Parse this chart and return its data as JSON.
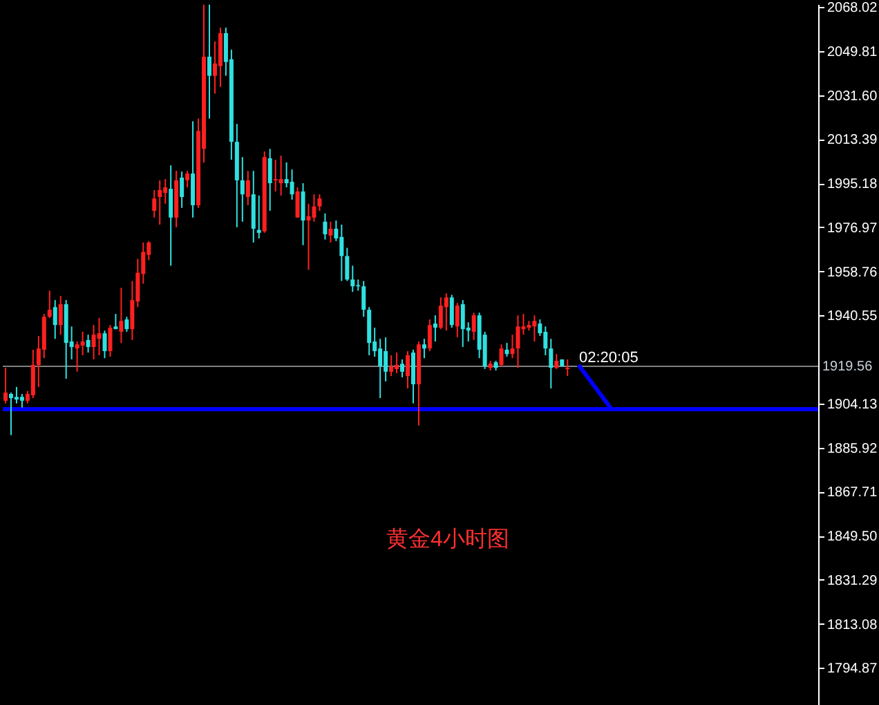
{
  "chart_data": {
    "type": "candlestick",
    "categories": [
      null,
      null,
      null,
      null,
      null,
      null,
      null,
      null,
      null,
      null,
      null,
      null,
      null,
      null,
      null,
      null,
      null,
      null,
      null,
      null,
      null,
      null,
      null,
      null,
      null,
      null,
      null,
      null,
      null,
      null,
      null,
      null,
      null,
      null,
      null,
      null,
      null,
      null,
      null,
      null,
      null,
      null,
      null,
      null,
      null,
      null,
      null,
      null,
      null,
      null,
      null,
      null,
      null,
      null,
      null,
      null,
      null,
      null,
      null,
      null,
      null,
      null,
      null,
      null,
      null,
      null,
      null,
      null,
      null,
      null,
      null,
      null,
      null,
      null,
      null,
      null,
      null,
      null,
      null,
      null,
      null,
      null,
      null,
      null,
      null,
      null,
      null,
      null,
      null,
      null,
      null,
      null,
      null,
      null,
      null,
      null,
      null,
      null,
      null,
      null,
      null,
      null,
      null,
      null,
      null,
      null,
      null,
      null,
      null,
      null,
      null,
      null,
      null,
      null,
      null,
      null,
      null,
      null,
      null,
      null,
      null,
      null,
      null,
      null,
      null,
      null,
      null,
      null,
      null,
      null,
      null,
      null,
      null,
      null,
      null,
      null,
      null,
      null,
      null,
      null,
      null,
      null,
      null,
      null,
      null,
      null,
      null,
      null
    ],
    "ohlc": [
      [
        1905.3,
        1918.9,
        1904.2,
        1908.7
      ],
      [
        1908.1,
        1908.7,
        1891.1,
        1906.4
      ],
      [
        1906.9,
        1911.0,
        1904.2,
        1905.8
      ],
      [
        1906.9,
        1908.1,
        1902.5,
        1905.3
      ],
      [
        1905.3,
        1909.3,
        1904.2,
        1908.1
      ],
      [
        1907.6,
        1926.4,
        1906.4,
        1920.1
      ],
      [
        1920.1,
        1932.1,
        1911.0,
        1926.9
      ],
      [
        1926.4,
        1941.2,
        1922.9,
        1940.0
      ],
      [
        1940.0,
        1950.8,
        1939.5,
        1942.9
      ],
      [
        1944.0,
        1946.9,
        1930.9,
        1936.6
      ],
      [
        1936.6,
        1948.6,
        1932.6,
        1945.2
      ],
      [
        1945.2,
        1946.9,
        1914.4,
        1929.2
      ],
      [
        1929.8,
        1936.0,
        1922.4,
        1927.5
      ],
      [
        1926.9,
        1929.8,
        1917.3,
        1928.6
      ],
      [
        1928.1,
        1933.8,
        1924.1,
        1929.8
      ],
      [
        1930.4,
        1932.6,
        1925.2,
        1927.5
      ],
      [
        1927.5,
        1936.6,
        1922.4,
        1932.6
      ],
      [
        1930.9,
        1939.5,
        1924.1,
        1933.2
      ],
      [
        1933.2,
        1934.3,
        1922.9,
        1925.8
      ],
      [
        1925.8,
        1936.6,
        1923.5,
        1935.5
      ],
      [
        1936.0,
        1941.2,
        1934.9,
        1934.9
      ],
      [
        1933.8,
        1952.0,
        1929.2,
        1938.3
      ],
      [
        1938.9,
        1940.0,
        1933.8,
        1934.9
      ],
      [
        1934.9,
        1954.8,
        1930.4,
        1946.9
      ],
      [
        1946.3,
        1963.9,
        1944.0,
        1958.2
      ],
      [
        1957.7,
        1970.7,
        1953.7,
        1966.8
      ],
      [
        1965.6,
        1971.3,
        1963.4,
        1970.7
      ],
      [
        1983.8,
        1992.4,
        1981.0,
        1988.9
      ],
      [
        1989.5,
        1996.4,
        1978.1,
        1992.4
      ],
      [
        1991.2,
        1996.9,
        1986.7,
        1993.5
      ],
      [
        1992.9,
        2002.6,
        1961.1,
        1981.0
      ],
      [
        1981.0,
        2000.3,
        1977.0,
        1996.4
      ],
      [
        1997.5,
        2000.0,
        1985.0,
        1989.5
      ],
      [
        1996.4,
        2000.3,
        1993.5,
        1999.2
      ],
      [
        1999.2,
        2020.8,
        1981.0,
        1986.1
      ],
      [
        1986.1,
        2021.9,
        1985.0,
        2016.8
      ],
      [
        2009.4,
        2069.0,
        2003.7,
        2047.5
      ],
      [
        2047.5,
        2069.0,
        2021.9,
        2039.6
      ],
      [
        2039.6,
        2053.8,
        2032.2,
        2044.7
      ],
      [
        2043.6,
        2059.5,
        2035.0,
        2057.2
      ],
      [
        2057.2,
        2059.5,
        2039.6,
        2045.3
      ],
      [
        2046.4,
        2050.4,
        2004.9,
        2012.3
      ],
      [
        2012.3,
        2019.7,
        1977.0,
        1996.4
      ],
      [
        1996.4,
        2006.0,
        1979.3,
        1990.6
      ],
      [
        1989.5,
        2000.3,
        1986.1,
        1996.4
      ],
      [
        1990.6,
        2000.3,
        1970.7,
        1976.4
      ],
      [
        1975.9,
        1990.1,
        1972.4,
        1974.7
      ],
      [
        1975.3,
        2008.3,
        1974.7,
        2006.0
      ],
      [
        2005.5,
        2009.4,
        1983.8,
        1995.2
      ],
      [
        1996.4,
        2004.9,
        1991.8,
        1996.9
      ],
      [
        1995.2,
        2006.6,
        1990.1,
        1996.9
      ],
      [
        1996.9,
        2003.8,
        1993.5,
        1995.2
      ],
      [
        1995.8,
        2000.9,
        1988.4,
        1990.6
      ],
      [
        1981.0,
        1993.5,
        1981.0,
        1991.8
      ],
      [
        1991.8,
        1995.2,
        1969.6,
        1979.8
      ],
      [
        1979.8,
        1986.7,
        1959.4,
        1981.6
      ],
      [
        1981.0,
        1990.6,
        1979.3,
        1985.6
      ],
      [
        1985.6,
        1990.6,
        1983.8,
        1988.9
      ],
      [
        1979.3,
        1982.7,
        1971.9,
        1974.1
      ],
      [
        1973.6,
        1979.3,
        1970.7,
        1976.4
      ],
      [
        1976.4,
        1979.8,
        1971.3,
        1972.4
      ],
      [
        1973.0,
        1978.1,
        1954.8,
        1965.1
      ],
      [
        1965.1,
        1968.5,
        1954.8,
        1955.4
      ],
      [
        1955.4,
        1961.1,
        1950.3,
        1952.6
      ],
      [
        1953.1,
        1955.4,
        1950.8,
        1952.6
      ],
      [
        1952.6,
        1954.8,
        1940.0,
        1942.9
      ],
      [
        1942.9,
        1944.0,
        1924.1,
        1929.2
      ],
      [
        1929.8,
        1935.5,
        1923.5,
        1925.8
      ],
      [
        1926.9,
        1930.9,
        1906.4,
        1919.5
      ],
      [
        1925.8,
        1931.5,
        1913.3,
        1917.3
      ],
      [
        1917.3,
        1924.1,
        1915.5,
        1919.5
      ],
      [
        1918.4,
        1925.2,
        1916.7,
        1920.1
      ],
      [
        1920.6,
        1922.4,
        1915.0,
        1917.3
      ],
      [
        1915.5,
        1925.8,
        1910.4,
        1924.1
      ],
      [
        1925.2,
        1926.4,
        1904.2,
        1912.1
      ],
      [
        1912.1,
        1929.8,
        1895.1,
        1928.6
      ],
      [
        1928.6,
        1930.9,
        1922.9,
        1926.9
      ],
      [
        1926.9,
        1938.9,
        1925.8,
        1936.6
      ],
      [
        1937.2,
        1940.6,
        1929.8,
        1935.5
      ],
      [
        1935.5,
        1948.0,
        1934.9,
        1944.6
      ],
      [
        1944.0,
        1949.7,
        1934.3,
        1948.0
      ],
      [
        1948.0,
        1949.1,
        1935.5,
        1936.6
      ],
      [
        1936.0,
        1945.7,
        1931.5,
        1944.6
      ],
      [
        1945.2,
        1946.9,
        1927.5,
        1934.9
      ],
      [
        1935.5,
        1937.7,
        1929.8,
        1934.3
      ],
      [
        1933.8,
        1941.7,
        1930.4,
        1940.6
      ],
      [
        1940.6,
        1941.7,
        1922.9,
        1926.4
      ],
      [
        1932.6,
        1933.8,
        1918.4,
        1919.5
      ],
      [
        1918.9,
        1921.8,
        1917.8,
        1920.6
      ],
      [
        1921.2,
        1921.8,
        1917.8,
        1918.9
      ],
      [
        1920.1,
        1928.6,
        1919.5,
        1926.9
      ],
      [
        1926.4,
        1929.2,
        1923.5,
        1924.6
      ],
      [
        1924.6,
        1932.6,
        1922.9,
        1926.9
      ],
      [
        1926.9,
        1940.6,
        1918.9,
        1936.0
      ],
      [
        1934.9,
        1941.2,
        1932.6,
        1936.0
      ],
      [
        1935.5,
        1938.3,
        1934.3,
        1936.6
      ],
      [
        1936.0,
        1940.6,
        1929.8,
        1938.3
      ],
      [
        1937.2,
        1938.9,
        1932.1,
        1933.2
      ],
      [
        1933.8,
        1936.0,
        1924.1,
        1926.9
      ],
      [
        1926.9,
        1930.9,
        1910.4,
        1918.9
      ],
      [
        1918.9,
        1924.6,
        1918.4,
        1921.8
      ],
      [
        1922.4,
        1922.4,
        1919.5,
        1919.5
      ],
      [
        1918.4,
        1922.4,
        1915.5,
        1918.9
      ],
      null,
      null,
      null,
      null,
      null,
      null,
      null,
      null,
      null,
      null,
      null,
      null,
      null,
      null,
      null,
      null,
      null,
      null,
      null,
      null,
      null,
      null,
      null,
      null,
      null,
      null,
      null,
      null,
      null,
      null,
      null,
      null,
      null,
      null,
      null,
      null,
      null,
      null,
      null,
      null,
      null,
      null,
      null,
      null,
      null
    ],
    "colors": [
      "#ff2020",
      "#30e0e0",
      "#30e0e0",
      "#30e0e0",
      "#ff2020",
      "#ff2020",
      "#ff2020",
      "#ff2020",
      "#ff2020",
      "#30e0e0",
      "#ff2020",
      "#30e0e0",
      "#30e0e0",
      "#ff2020",
      "#ff2020",
      "#30e0e0",
      "#ff2020",
      "#ff2020",
      "#30e0e0",
      "#ff2020",
      "#30e0e0",
      "#ff2020",
      "#30e0e0",
      "#ff2020",
      "#ff2020",
      "#ff2020",
      "#ff2020",
      "#ff2020",
      "#ff2020",
      "#ff2020",
      "#30e0e0",
      "#ff2020",
      "#30e0e0",
      "#ff2020",
      "#30e0e0",
      "#ff2020",
      "#ff2020",
      "#30e0e0",
      "#ff2020",
      "#ff2020",
      "#30e0e0",
      "#30e0e0",
      "#30e0e0",
      "#30e0e0",
      "#ff2020",
      "#30e0e0",
      "#30e0e0",
      "#ff2020",
      "#30e0e0",
      "#ff2020",
      "#ff2020",
      "#30e0e0",
      "#30e0e0",
      "#ff2020",
      "#30e0e0",
      "#ff2020",
      "#ff2020",
      "#ff2020",
      "#30e0e0",
      "#ff2020",
      "#30e0e0",
      "#30e0e0",
      "#30e0e0",
      "#30e0e0",
      "#30e0e0",
      "#30e0e0",
      "#30e0e0",
      "#30e0e0",
      "#30e0e0",
      "#30e0e0",
      "#ff2020",
      "#ff2020",
      "#30e0e0",
      "#ff2020",
      "#30e0e0",
      "#ff2020",
      "#30e0e0",
      "#ff2020",
      "#30e0e0",
      "#ff2020",
      "#ff2020",
      "#30e0e0",
      "#ff2020",
      "#30e0e0",
      "#30e0e0",
      "#ff2020",
      "#30e0e0",
      "#30e0e0",
      "#ff2020",
      "#30e0e0",
      "#ff2020",
      "#30e0e0",
      "#ff2020",
      "#ff2020",
      "#ff2020",
      "#ff2020",
      "#ff2020",
      "#30e0e0",
      "#30e0e0",
      "#30e0e0",
      "#ff2020",
      "#30e0e0",
      "#ff2020",
      null,
      null,
      null,
      null,
      null,
      null,
      null,
      null,
      null,
      null,
      null,
      null,
      null,
      null,
      null,
      null,
      null,
      null,
      null,
      null,
      null,
      null,
      null,
      null,
      null,
      null,
      null,
      null,
      null,
      null,
      null,
      null,
      null,
      null,
      null,
      null,
      null,
      null,
      null,
      null,
      null,
      null,
      null,
      null,
      null
    ],
    "series": [
      {
        "type": "line",
        "color": "#0000ff",
        "values": [
          null,
          null,
          null,
          null,
          null,
          null,
          null,
          null,
          null,
          null,
          null,
          null,
          null,
          null,
          null,
          null,
          null,
          null,
          null,
          null,
          null,
          null,
          null,
          null,
          null,
          null,
          null,
          null,
          null,
          null,
          null,
          null,
          null,
          null,
          null,
          null,
          null,
          null,
          null,
          null,
          null,
          null,
          null,
          null,
          null,
          null,
          null,
          null,
          null,
          null,
          null,
          null,
          null,
          null,
          null,
          null,
          null,
          null,
          null,
          null,
          null,
          null,
          null,
          null,
          null,
          null,
          null,
          null,
          null,
          null,
          null,
          null,
          null,
          null,
          null,
          null,
          null,
          null,
          null,
          null,
          null,
          null,
          null,
          null,
          null,
          null,
          null,
          null,
          null,
          null,
          null,
          null,
          null,
          null,
          null,
          null,
          null,
          null,
          null,
          null,
          null,
          null,
          null,
          null,
          1920.1,
          null,
          null,
          null,
          null,
          null,
          1901.8,
          null,
          null,
          null,
          null,
          null,
          null,
          null,
          null,
          null,
          null,
          null,
          null,
          null,
          null,
          null,
          null,
          null,
          null,
          null,
          null,
          null,
          null,
          null,
          null,
          null,
          null,
          null,
          null,
          null,
          null,
          null,
          null,
          null,
          null,
          null,
          null,
          null
        ]
      }
    ],
    "ylim": [
      1779.0,
      2069.2
    ],
    "yticks": [
      2068.02,
      2049.81,
      {
        "value": 2031.6,
        "label": "2031.60"
      },
      2013.39,
      1995.18,
      1976.97,
      1958.76,
      1940.55,
      1904.13,
      1885.92,
      1867.71,
      {
        "value": 1849.5,
        "label": "1849.50"
      },
      1831.29,
      1813.08,
      1794.87
    ],
    "tick_labels": "y",
    "ref_lines": [
      {
        "axis": "y",
        "value": 1919.56,
        "label": "1919.56",
        "color": "#808080"
      },
      {
        "axis": "y",
        "value": 1901.8,
        "color": "#0000ff"
      }
    ],
    "annotations": [
      "02:20:05",
      "黄金4小时图"
    ]
  }
}
